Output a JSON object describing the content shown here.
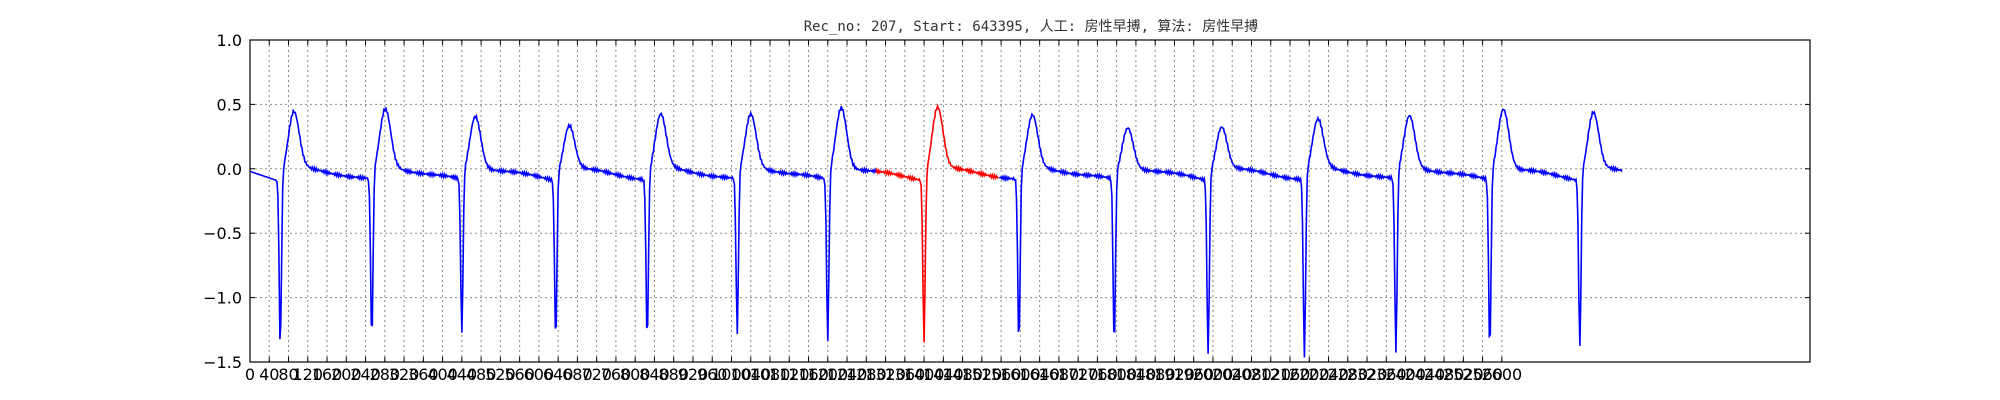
{
  "chart_data": {
    "type": "line",
    "title": "Rec_no: 207, Start: 643395, 人工: 房性早搏, 算法: 房性早搏",
    "xlabel": "",
    "ylabel": "",
    "xlim": [
      0,
      3240
    ],
    "ylim": [
      -1.5,
      1.0
    ],
    "grid": true,
    "legend": "none",
    "colors": {
      "normal": "#0000ff",
      "highlight": "#ff0000"
    },
    "xticks": [
      0,
      40,
      80,
      120,
      160,
      200,
      240,
      280,
      320,
      360,
      400,
      440,
      480,
      520,
      560,
      600,
      640,
      680,
      720,
      760,
      800,
      840,
      880,
      920,
      960,
      1000,
      1040,
      1080,
      1120,
      1160,
      1200,
      1240,
      1280,
      1320,
      1360,
      1400,
      1440,
      1480,
      1520,
      1560,
      1600,
      1640,
      1680,
      1720,
      1760,
      1800,
      1840,
      1880,
      1920,
      1960,
      2000,
      2040,
      2080,
      2120,
      2160,
      2200,
      2240,
      2280,
      2320,
      2360,
      2400,
      2440,
      2480,
      2520,
      2560,
      2600
    ],
    "yticks": [
      -1.5,
      -1.0,
      -0.5,
      0.0,
      0.5,
      1.0
    ],
    "ytick_labels": [
      "−1.5",
      "−1.0",
      "−0.5",
      "0.0",
      "0.5",
      "1.0"
    ],
    "beats": [
      {
        "r": 63,
        "r_val": -1.35,
        "t_val": 0.45
      },
      {
        "r": 253,
        "r_val": -1.35,
        "t_val": 0.47
      },
      {
        "r": 440,
        "r_val": -1.3,
        "t_val": 0.42
      },
      {
        "r": 635,
        "r_val": -1.35,
        "t_val": 0.35
      },
      {
        "r": 825,
        "r_val": -1.35,
        "t_val": 0.43
      },
      {
        "r": 1012,
        "r_val": -1.3,
        "t_val": 0.43
      },
      {
        "r": 1200,
        "r_val": -1.35,
        "t_val": 0.49
      },
      {
        "r": 1400,
        "r_val": -1.35,
        "t_val": 0.49
      },
      {
        "r": 1597,
        "r_val": -1.38,
        "t_val": 0.42
      },
      {
        "r": 1795,
        "r_val": -1.4,
        "t_val": 0.33
      },
      {
        "r": 1990,
        "r_val": -1.45,
        "t_val": 0.34
      },
      {
        "r": 2190,
        "r_val": -1.48,
        "t_val": 0.39
      },
      {
        "r": 2380,
        "r_val": -1.45,
        "t_val": 0.42
      },
      {
        "r": 2575,
        "r_val": -1.43,
        "t_val": 0.48
      },
      {
        "r": 2762,
        "r_val": -1.4,
        "t_val": 0.45
      }
    ],
    "signal_end": 2850,
    "highlight_range": [
      1300,
      1555
    ]
  }
}
